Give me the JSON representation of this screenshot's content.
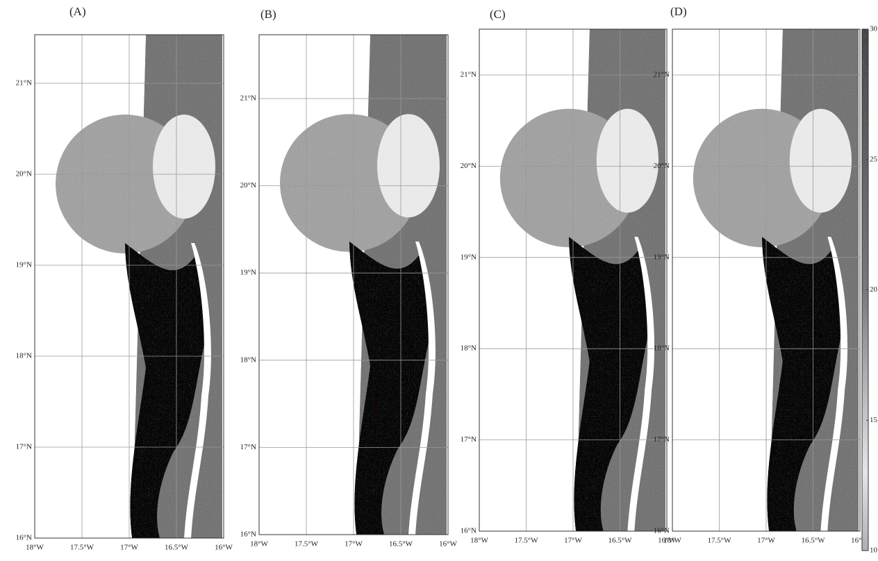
{
  "panels": [
    {
      "label": "(A)"
    },
    {
      "label": "(B)"
    },
    {
      "label": "(C)"
    },
    {
      "label": "(D)"
    }
  ],
  "lat_ticks": [
    {
      "value": 21,
      "label": "21°N"
    },
    {
      "value": 20,
      "label": "20°N"
    },
    {
      "value": 19,
      "label": "19°N"
    },
    {
      "value": 18,
      "label": "18°N"
    },
    {
      "value": 17,
      "label": "17°N"
    },
    {
      "value": 16,
      "label": "16°N"
    }
  ],
  "lon_ticks": [
    {
      "value": -18,
      "label": "18°W"
    },
    {
      "value": -17.5,
      "label": "17.5°W"
    },
    {
      "value": -17,
      "label": "17°W"
    },
    {
      "value": -16.5,
      "label": "16.5°W"
    },
    {
      "value": -16,
      "label": "16°W"
    }
  ],
  "colorbar": {
    "range": [
      10,
      30
    ],
    "ticks": [
      10,
      15,
      20,
      25,
      30
    ]
  }
}
